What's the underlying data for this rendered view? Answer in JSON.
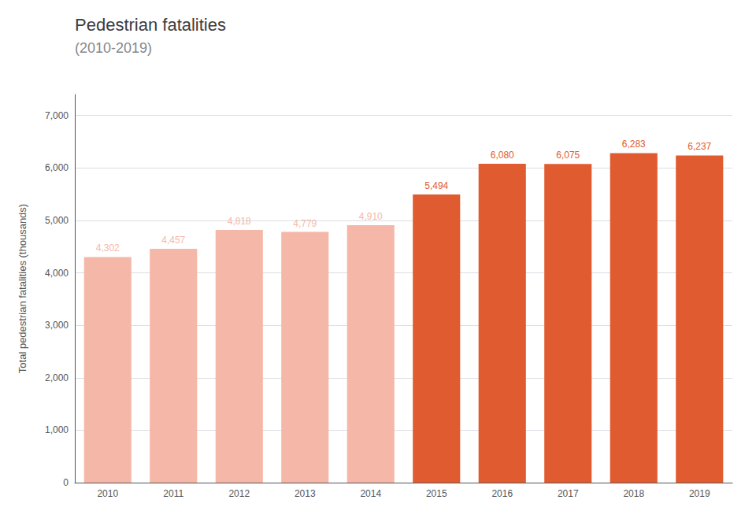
{
  "chart_data": {
    "type": "bar",
    "title": "Pedestrian fatalities",
    "subtitle": "(2010-2019)",
    "categories": [
      "2010",
      "2011",
      "2012",
      "2013",
      "2014",
      "2015",
      "2016",
      "2017",
      "2018",
      "2019"
    ],
    "values": [
      4302,
      4457,
      4818,
      4779,
      4910,
      5494,
      6080,
      6075,
      6283,
      6237
    ],
    "value_labels": [
      "4,302",
      "4,457",
      "4,818",
      "4,779",
      "4,910",
      "5,494",
      "6,080",
      "6,075",
      "6,283",
      "6,237"
    ],
    "colors": [
      "#F5B8A8",
      "#F5B8A8",
      "#F5B8A8",
      "#F5B8A8",
      "#F5B8A8",
      "#E05C30",
      "#E05C30",
      "#E05C30",
      "#E05C30",
      "#E05C30"
    ],
    "ylabel": "Total pedestrian fatalities (thousands)",
    "ylim": [
      0,
      7400
    ],
    "yticks": [
      0,
      {
        "value": 1000,
        "label": "1,000"
      },
      {
        "value": 2000,
        "label": "2,000"
      },
      {
        "value": 3000,
        "label": "3,000"
      },
      {
        "value": 4000,
        "label": "4,000"
      },
      {
        "value": 5000,
        "label": "5,000"
      },
      {
        "value": 6000,
        "label": "6,000"
      },
      {
        "value": 7000,
        "label": "7,000"
      }
    ],
    "grid": true,
    "data_labels": true
  }
}
